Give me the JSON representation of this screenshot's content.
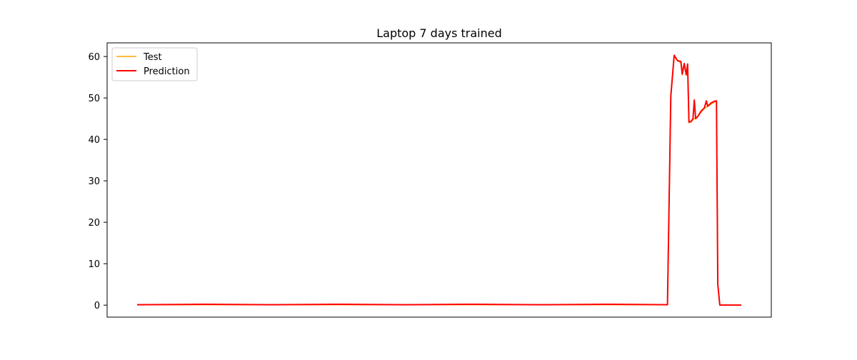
{
  "chart_data": {
    "type": "line",
    "title": "Laptop 7 days trained",
    "xlabel": "",
    "ylabel": "",
    "ylim": [
      -2.9,
      63.3
    ],
    "yticks": [
      0,
      10,
      20,
      30,
      40,
      50,
      60
    ],
    "show_x_ticks": false,
    "grid": false,
    "legend": {
      "placement": "top-left",
      "entries": [
        "Test",
        "Prediction"
      ]
    },
    "series": [
      {
        "name": "Test",
        "color": "#ffa500",
        "x": [
          0,
          100,
          200,
          300,
          400,
          500,
          600,
          700,
          790,
          795,
          800,
          805,
          810,
          812,
          815,
          818,
          820,
          822,
          825,
          830,
          835,
          840,
          845,
          850,
          855,
          860,
          863,
          865,
          868,
          870,
          900
        ],
        "y": [
          0.1,
          0.1,
          0.1,
          0.1,
          0.1,
          0.1,
          0.1,
          0.1,
          0.1,
          50,
          60,
          59,
          58.5,
          55.5,
          58,
          55.5,
          58,
          44,
          44.2,
          45,
          45.5,
          46.5,
          47.5,
          48,
          48.5,
          49,
          49.2,
          5,
          0,
          0,
          0
        ]
      },
      {
        "name": "Prediction",
        "color": "#ff0000",
        "x": [
          0,
          100,
          200,
          300,
          400,
          500,
          600,
          700,
          790,
          795,
          800,
          805,
          810,
          812,
          815,
          818,
          820,
          822,
          825,
          828,
          830,
          832,
          835,
          840,
          845,
          848,
          850,
          855,
          860,
          863,
          865,
          868,
          870,
          900
        ],
        "y": [
          0.1,
          0.2,
          0.1,
          0.2,
          0.1,
          0.2,
          0.1,
          0.2,
          0.1,
          50.5,
          60.3,
          59,
          58.8,
          55.8,
          58.3,
          55.6,
          58.2,
          44.2,
          44.3,
          45,
          49.5,
          45,
          45.5,
          46.8,
          47.6,
          49.3,
          48,
          48.8,
          49.2,
          49.3,
          5,
          0,
          0,
          0
        ]
      }
    ]
  }
}
